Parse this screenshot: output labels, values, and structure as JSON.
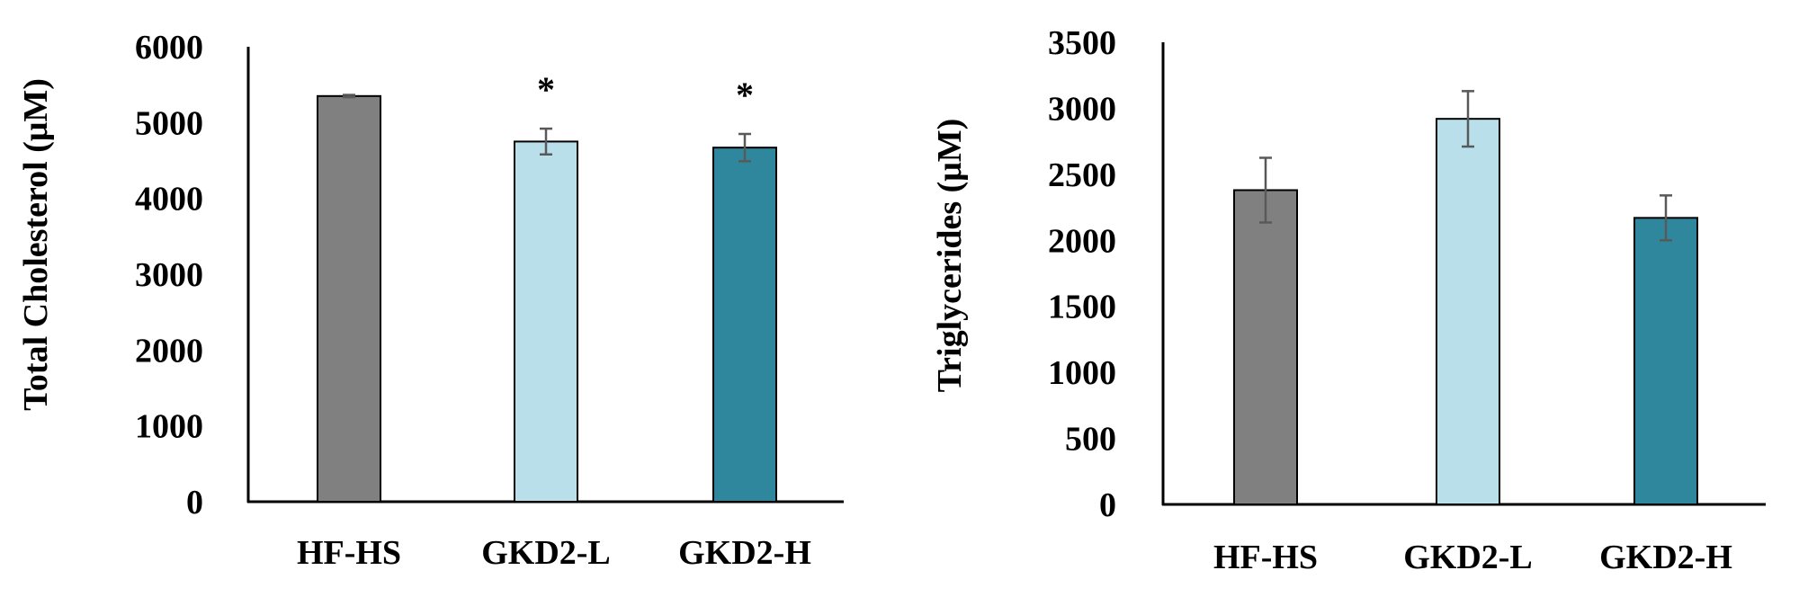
{
  "colors": {
    "HF-HS": "#808080",
    "GKD2-L": "#b9dfeb",
    "GKD2-H": "#2e879d",
    "outline": "#000000",
    "errorbar": "#595959"
  },
  "chart_data": [
    {
      "type": "bar",
      "title": "",
      "categories": [
        "HF-HS",
        "GKD2-L",
        "GKD2-H"
      ],
      "values": [
        5350,
        4750,
        4670
      ],
      "errors": [
        15,
        170,
        180
      ],
      "significance": [
        "",
        "*",
        "*"
      ],
      "xlabel": "",
      "ylabel": "Total Cholesterol (μM)",
      "ylim": [
        0,
        6000
      ],
      "yticks": [
        "0",
        "1000",
        "2000",
        "3000",
        "4000",
        "5000",
        "6000"
      ],
      "grid": false,
      "legend": "none"
    },
    {
      "type": "bar",
      "title": "",
      "categories": [
        "HF-HS",
        "GKD2-L",
        "GKD2-H"
      ],
      "values": [
        2380,
        2920,
        2170
      ],
      "errors": [
        245,
        210,
        170
      ],
      "significance": [
        "",
        "",
        ""
      ],
      "xlabel": "",
      "ylabel": "Triglycerides (μM)",
      "ylim": [
        0,
        3500
      ],
      "yticks": [
        "0",
        "500",
        "1000",
        "1500",
        "2000",
        "2500",
        "3000",
        "3500"
      ],
      "grid": false,
      "legend": "none"
    }
  ]
}
